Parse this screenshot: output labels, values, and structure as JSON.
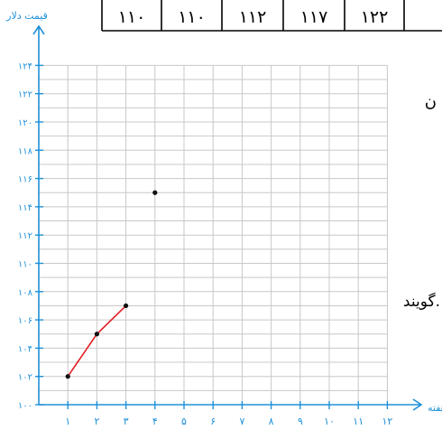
{
  "table_fragment": {
    "cells": [
      "۱۱۰",
      "۱۱۰",
      "۱۱۲",
      "۱۱۷",
      "۱۲۲"
    ]
  },
  "side_text": {
    "top_char": "ن",
    "bottom_word": "گویند."
  },
  "colors": {
    "axis": "#1e90d8",
    "grid": "#c8c8c8",
    "line": "#e31e24",
    "point": "#111111",
    "text": "#1e90d8"
  },
  "chart_data": {
    "type": "scatter",
    "title": "",
    "xlabel": "هفته",
    "ylabel": "قیمت دلار",
    "xlim": [
      0,
      12
    ],
    "ylim": [
      100,
      124
    ],
    "x_ticks": [
      1,
      2,
      3,
      4,
      5,
      6,
      7,
      8,
      9,
      10,
      11,
      12
    ],
    "x_tick_labels": [
      "۱",
      "۲",
      "۳",
      "۴",
      "۵",
      "۶",
      "۷",
      "۸",
      "۹",
      "۱۰",
      "۱۱",
      "۱۲"
    ],
    "y_ticks": [
      100,
      102,
      104,
      106,
      108,
      110,
      112,
      114,
      116,
      118,
      120,
      122,
      124
    ],
    "y_tick_labels": [
      "۱۰۰",
      "۱۰۲",
      "۱۰۴",
      "۱۰۶",
      "۱۰۸",
      "۱۱۰",
      "۱۱۲",
      "۱۱۴",
      "۱۱۶",
      "۱۱۸",
      "۱۲۰",
      "۱۲۲",
      "۱۲۴"
    ],
    "grid": true,
    "series": [
      {
        "style": "line",
        "color": "#e31e24",
        "points": [
          [
            1,
            102
          ],
          [
            2,
            105
          ],
          [
            3,
            107
          ]
        ]
      },
      {
        "style": "point",
        "color": "#111111",
        "points": [
          [
            1,
            102
          ],
          [
            2,
            105
          ],
          [
            3,
            107
          ],
          [
            4,
            115
          ]
        ]
      }
    ]
  }
}
